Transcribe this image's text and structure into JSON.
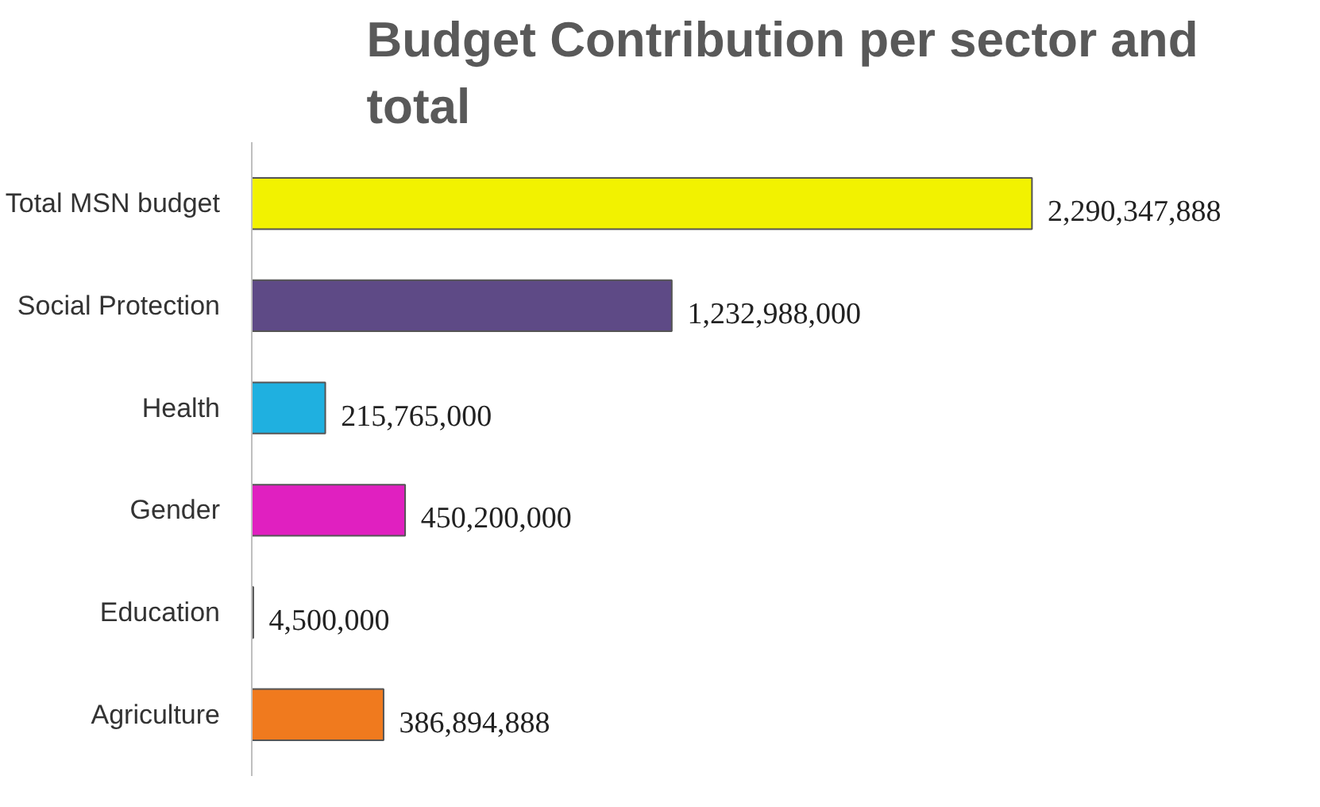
{
  "chart_data": {
    "type": "bar",
    "orientation": "horizontal",
    "title": "Budget Contribution per sector and total",
    "categories": [
      "Total MSN budget",
      "Social Protection",
      "Health",
      "Gender",
      "Education",
      "Agriculture"
    ],
    "values": [
      2290347888,
      1232988000,
      215765000,
      450200000,
      4500000,
      386894888
    ],
    "colors": [
      "#f2f200",
      "#5e4a86",
      "#1fb0e0",
      "#e020c0",
      "#404040",
      "#f07a1e"
    ],
    "value_labels": [
      "2,290,347,888",
      "1,232,988,000",
      "215,765,000",
      "450,200,000",
      "4,500,000",
      "386,894,888"
    ],
    "grid": false
  }
}
